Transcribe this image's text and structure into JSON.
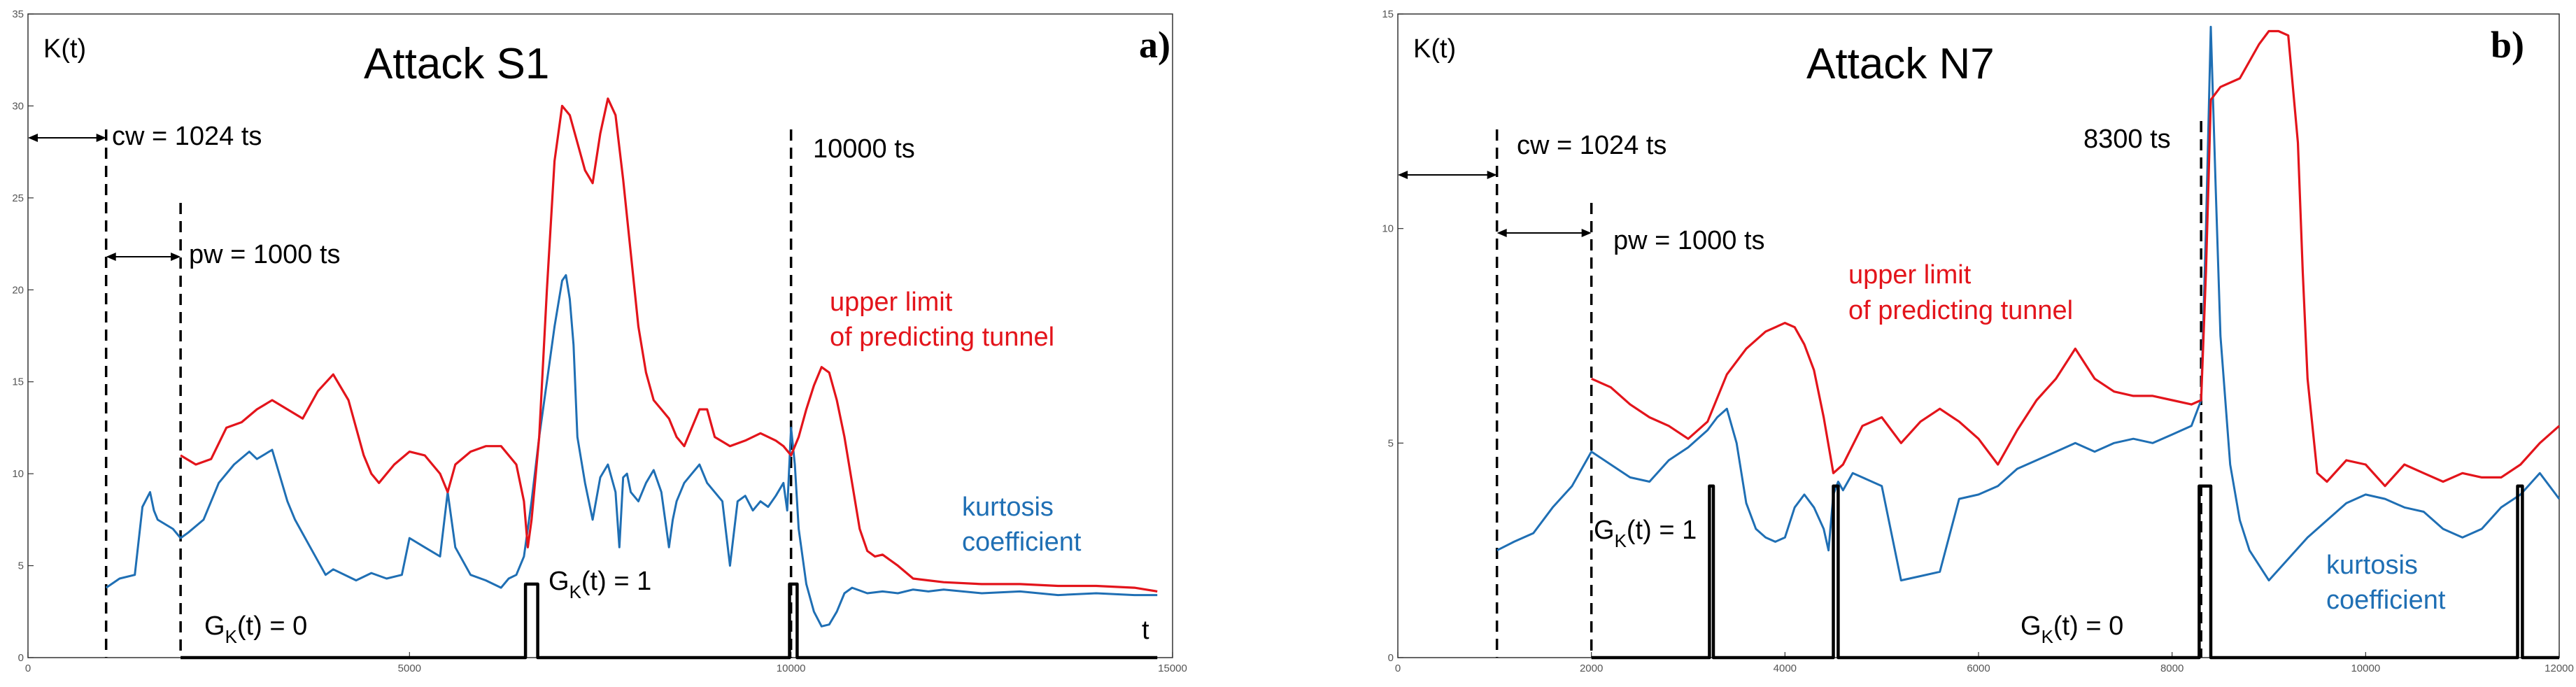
{
  "colors": {
    "kurtosis": "#1f6fb4",
    "upper_limit": "#e3141b",
    "gk": "#000000",
    "axis": "#333333"
  },
  "chart_data": [
    {
      "type": "line",
      "panel_label": "a)",
      "title": "Attack  S1",
      "ylabel": "K(t)",
      "xlabel": "t",
      "xlim": [
        0,
        15000
      ],
      "ylim": [
        0,
        35
      ],
      "xticks": [
        0,
        5000,
        10000,
        15000
      ],
      "xtick_labels": [
        "0",
        "5000",
        "10000",
        "15000"
      ],
      "yticks": [
        0,
        5,
        10,
        15,
        20,
        25,
        30,
        35
      ],
      "ytick_labels": [
        "0",
        "5",
        "10",
        "15",
        "20",
        "25",
        "30",
        "35"
      ],
      "annotations": {
        "cw": "cw = 1024 ts",
        "pw": "pw = 1000 ts",
        "event": "10000 ts",
        "upper_1": "upper limit",
        "upper_2": "of predicting tunnel",
        "kurt_1": "kurtosis",
        "kurt_2": "coefficient",
        "gk1_main": "G",
        "gk1_sub": "K",
        "gk1_rest": "(t) = 1",
        "gk0_main": "G",
        "gk0_sub": "K",
        "gk0_rest": "(t) = 0"
      },
      "markers": {
        "cw_start": 0,
        "cw_line": 1024,
        "pw_line": 2000,
        "event_line": 10000
      },
      "series": [
        {
          "name": "kurtosis coefficient",
          "x": [
            1024,
            1200,
            1400,
            1500,
            1600,
            1650,
            1700,
            1900,
            2000,
            2100,
            2300,
            2500,
            2700,
            2900,
            3000,
            3200,
            3400,
            3500,
            3700,
            3900,
            4000,
            4300,
            4500,
            4700,
            4900,
            5000,
            5200,
            5400,
            5500,
            5600,
            5800,
            6000,
            6100,
            6200,
            6300,
            6400,
            6500,
            6550,
            6600,
            6700,
            6800,
            6900,
            7000,
            7050,
            7100,
            7150,
            7200,
            7300,
            7400,
            7500,
            7600,
            7700,
            7750,
            7800,
            7850,
            7900,
            8000,
            8100,
            8200,
            8300,
            8400,
            8450,
            8500,
            8600,
            8700,
            8800,
            8900,
            9000,
            9100,
            9200,
            9300,
            9400,
            9500,
            9600,
            9700,
            9800,
            9900,
            9950,
            10000,
            10050,
            10100,
            10200,
            10300,
            10400,
            10500,
            10600,
            10700,
            10800,
            11000,
            11200,
            11400,
            11600,
            11800,
            12000,
            12500,
            13000,
            13500,
            14000,
            14500,
            14800
          ],
          "y": [
            3.8,
            4.3,
            4.5,
            8.2,
            9.0,
            8.0,
            7.5,
            7.0,
            6.5,
            6.8,
            7.5,
            9.5,
            10.5,
            11.2,
            10.8,
            11.3,
            8.5,
            7.5,
            6.0,
            4.5,
            4.8,
            4.2,
            4.6,
            4.3,
            4.5,
            6.5,
            6.0,
            5.5,
            9.0,
            6.0,
            4.5,
            4.2,
            4.0,
            3.8,
            4.3,
            4.5,
            5.5,
            7.0,
            8.5,
            12.0,
            15.0,
            18.0,
            20.5,
            20.8,
            19.5,
            17.0,
            12.0,
            9.5,
            7.5,
            9.8,
            10.5,
            9.0,
            6.0,
            9.8,
            10.0,
            9.0,
            8.5,
            9.5,
            10.2,
            9.0,
            6.0,
            7.5,
            8.5,
            9.5,
            10.0,
            10.5,
            9.5,
            9.0,
            8.5,
            5.0,
            8.5,
            8.8,
            8.0,
            8.5,
            8.2,
            8.8,
            9.5,
            8.0,
            12.5,
            10.5,
            7.0,
            4.0,
            2.5,
            1.7,
            1.8,
            2.5,
            3.5,
            3.8,
            3.5,
            3.6,
            3.5,
            3.7,
            3.6,
            3.7,
            3.5,
            3.6,
            3.4,
            3.5,
            3.4,
            3.4
          ]
        },
        {
          "name": "upper limit of predicting tunnel",
          "x": [
            2000,
            2200,
            2400,
            2600,
            2800,
            3000,
            3200,
            3400,
            3600,
            3800,
            4000,
            4200,
            4400,
            4500,
            4600,
            4700,
            4800,
            5000,
            5200,
            5400,
            5500,
            5600,
            5800,
            6000,
            6200,
            6400,
            6500,
            6550,
            6600,
            6700,
            6800,
            6900,
            7000,
            7100,
            7200,
            7300,
            7400,
            7500,
            7600,
            7700,
            7800,
            7900,
            8000,
            8100,
            8200,
            8300,
            8400,
            8500,
            8600,
            8700,
            8800,
            8900,
            9000,
            9200,
            9400,
            9600,
            9800,
            9900,
            10000,
            10100,
            10200,
            10300,
            10400,
            10500,
            10600,
            10700,
            10800,
            10900,
            11000,
            11100,
            11200,
            11400,
            11600,
            11800,
            12000,
            12500,
            13000,
            13500,
            14000,
            14500,
            14800
          ],
          "y": [
            11.0,
            10.5,
            10.8,
            12.5,
            12.8,
            13.5,
            14.0,
            13.5,
            13.0,
            14.5,
            15.4,
            14.0,
            11.0,
            10.0,
            9.5,
            10.0,
            10.5,
            11.2,
            11.0,
            10.0,
            9.0,
            10.5,
            11.2,
            11.5,
            11.5,
            10.5,
            8.5,
            6.0,
            7.5,
            12.0,
            20.0,
            27.0,
            30.0,
            29.5,
            28.0,
            26.5,
            25.8,
            28.5,
            30.4,
            29.5,
            26.0,
            22.0,
            18.0,
            15.5,
            14.0,
            13.5,
            13.0,
            12.0,
            11.5,
            12.5,
            13.5,
            13.5,
            12.0,
            11.5,
            11.8,
            12.2,
            11.8,
            11.5,
            11.0,
            12.0,
            13.5,
            14.8,
            15.8,
            15.5,
            14.0,
            12.0,
            9.5,
            7.0,
            5.8,
            5.5,
            5.6,
            5.0,
            4.3,
            4.2,
            4.1,
            4.0,
            4.0,
            3.9,
            3.9,
            3.8,
            3.6
          ]
        },
        {
          "name": "GK(t)",
          "step": true,
          "x": [
            2000,
            6520,
            6520,
            6680,
            6680,
            9980,
            9980,
            10080,
            10080,
            14800
          ],
          "y": [
            0,
            0,
            4,
            4,
            0,
            0,
            4,
            4,
            0,
            0
          ]
        }
      ]
    },
    {
      "type": "line",
      "panel_label": "b)",
      "title": "Attack  N7",
      "ylabel": "K(t)",
      "xlabel": "",
      "xlim": [
        0,
        12000
      ],
      "ylim": [
        0,
        15
      ],
      "xticks": [
        0,
        2000,
        4000,
        6000,
        8000,
        10000,
        12000
      ],
      "xtick_labels": [
        "0",
        "2000",
        "4000",
        "6000",
        "8000",
        "10000",
        "12000"
      ],
      "yticks": [
        0,
        5,
        10,
        15
      ],
      "ytick_labels": [
        "0",
        "5",
        "10",
        "15"
      ],
      "annotations": {
        "cw": "cw = 1024 ts",
        "pw": "pw = 1000 ts",
        "event": "8300 ts",
        "upper_1": "upper limit",
        "upper_2": "of predicting tunnel",
        "kurt_1": "kurtosis",
        "kurt_2": "coefficient",
        "gk1_main": "G",
        "gk1_sub": "K",
        "gk1_rest": "(t) = 1",
        "gk0_main": "G",
        "gk0_sub": "K",
        "gk0_rest": "(t) = 0"
      },
      "markers": {
        "cw_start": 0,
        "cw_line": 1024,
        "pw_line": 2000,
        "event_line": 8300
      },
      "series": [
        {
          "name": "kurtosis coefficient",
          "x": [
            1024,
            1200,
            1400,
            1600,
            1800,
            2000,
            2200,
            2400,
            2600,
            2800,
            3000,
            3200,
            3300,
            3400,
            3500,
            3600,
            3700,
            3800,
            3900,
            4000,
            4100,
            4200,
            4300,
            4400,
            4450,
            4500,
            4550,
            4600,
            4700,
            4800,
            5000,
            5200,
            5400,
            5600,
            5800,
            6000,
            6200,
            6400,
            6600,
            6800,
            7000,
            7200,
            7400,
            7600,
            7800,
            8000,
            8200,
            8300,
            8350,
            8400,
            8450,
            8500,
            8600,
            8700,
            8800,
            9000,
            9200,
            9400,
            9600,
            9800,
            10000,
            10200,
            10400,
            10600,
            10800,
            11000,
            11200,
            11400,
            11600,
            11800,
            12000
          ],
          "y": [
            2.5,
            2.7,
            2.9,
            3.5,
            4.0,
            4.8,
            4.5,
            4.2,
            4.1,
            4.6,
            4.9,
            5.3,
            5.6,
            5.8,
            5.0,
            3.6,
            3.0,
            2.8,
            2.7,
            2.8,
            3.5,
            3.8,
            3.5,
            3.0,
            2.5,
            3.8,
            4.1,
            3.9,
            4.3,
            4.2,
            4.0,
            1.8,
            1.9,
            2.0,
            3.7,
            3.8,
            4.0,
            4.4,
            4.6,
            4.8,
            5.0,
            4.8,
            5.0,
            5.1,
            5.0,
            5.2,
            5.4,
            6.0,
            10.0,
            14.7,
            11.0,
            7.5,
            4.5,
            3.2,
            2.5,
            1.8,
            2.3,
            2.8,
            3.2,
            3.6,
            3.8,
            3.7,
            3.5,
            3.4,
            3.0,
            2.8,
            3.0,
            3.5,
            3.8,
            4.3,
            3.7
          ]
        },
        {
          "name": "upper limit of predicting tunnel",
          "x": [
            2000,
            2200,
            2400,
            2600,
            2800,
            3000,
            3200,
            3400,
            3600,
            3800,
            4000,
            4100,
            4200,
            4300,
            4400,
            4500,
            4600,
            4800,
            5000,
            5200,
            5400,
            5600,
            5800,
            6000,
            6200,
            6400,
            6600,
            6800,
            7000,
            7200,
            7400,
            7600,
            7800,
            8000,
            8200,
            8300,
            8350,
            8400,
            8500,
            8700,
            8900,
            9000,
            9100,
            9200,
            9300,
            9350,
            9400,
            9500,
            9600,
            9800,
            10000,
            10200,
            10400,
            10600,
            10800,
            11000,
            11200,
            11400,
            11600,
            11800,
            12000
          ],
          "y": [
            6.5,
            6.3,
            5.9,
            5.6,
            5.4,
            5.1,
            5.5,
            6.6,
            7.2,
            7.6,
            7.8,
            7.7,
            7.3,
            6.7,
            5.6,
            4.3,
            4.5,
            5.4,
            5.6,
            5.0,
            5.5,
            5.8,
            5.5,
            5.1,
            4.5,
            5.3,
            6.0,
            6.5,
            7.2,
            6.5,
            6.2,
            6.1,
            6.1,
            6.0,
            5.9,
            6.0,
            9.0,
            13.0,
            13.3,
            13.5,
            14.3,
            14.6,
            14.6,
            14.5,
            12.0,
            9.0,
            6.5,
            4.3,
            4.1,
            4.6,
            4.5,
            4.0,
            4.5,
            4.3,
            4.1,
            4.3,
            4.2,
            4.2,
            4.5,
            5.0,
            5.4
          ]
        },
        {
          "name": "GK(t)",
          "step": true,
          "x": [
            2000,
            3220,
            3220,
            3260,
            3260,
            4500,
            4500,
            4550,
            4550,
            8280,
            8280,
            8400,
            8400,
            11570,
            11570,
            11620,
            11620,
            12000
          ],
          "y": [
            0,
            0,
            4,
            4,
            0,
            0,
            4,
            4,
            0,
            0,
            4,
            4,
            0,
            0,
            4,
            4,
            0,
            0
          ]
        }
      ]
    }
  ]
}
